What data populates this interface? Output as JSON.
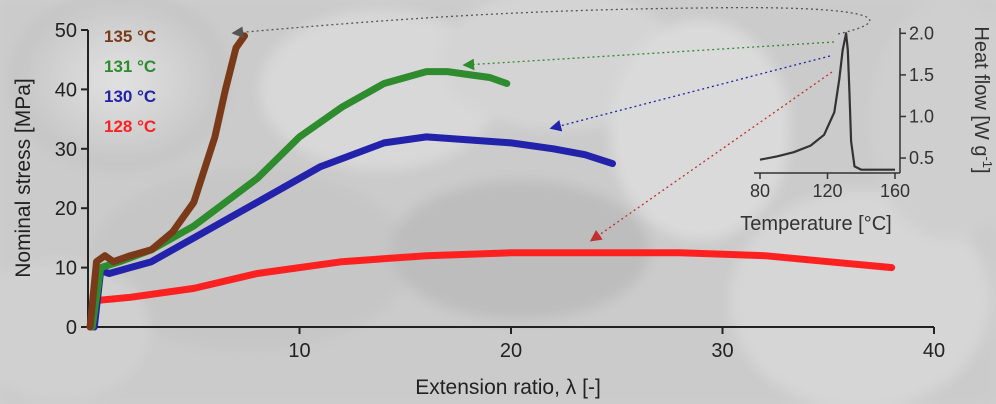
{
  "chart_data": [
    {
      "type": "line",
      "xlabel_main": "Extension ratio, ",
      "xlabel_sym": "λ",
      "xlabel_tail": " [-]",
      "ylabel": "Nominal stress [MPa]",
      "xlim": [
        0,
        40
      ],
      "ylim": [
        0,
        50
      ],
      "xticks": [
        "10",
        "20",
        "30",
        "40"
      ],
      "yticks": [
        "0",
        "10",
        "20",
        "30",
        "40",
        "50"
      ],
      "legend_placement": "top-left",
      "series": [
        {
          "name": "135",
          "unit": "°C",
          "color": "#7a3a1a",
          "x": [
            0.1,
            0.4,
            0.8,
            1.2,
            2,
            3,
            4,
            5,
            6,
            6.5,
            7,
            7.4
          ],
          "y": [
            0,
            11,
            12,
            11,
            12,
            13,
            16,
            21,
            32,
            40,
            47,
            49
          ]
        },
        {
          "name": "131",
          "unit": "°C",
          "color": "#2e8b2e",
          "x": [
            0.2,
            0.6,
            1.5,
            3,
            5,
            8,
            10,
            12,
            14,
            16,
            17,
            18,
            19,
            19.8
          ],
          "y": [
            0,
            10,
            11,
            13,
            17,
            25,
            32,
            37,
            41,
            43,
            43,
            42.5,
            42,
            41
          ]
        },
        {
          "name": "130",
          "unit": "°C",
          "color": "#2222aa",
          "x": [
            0.3,
            0.6,
            1,
            3,
            5,
            8,
            11,
            14,
            16,
            18,
            20,
            22,
            23.5,
            24.8
          ],
          "y": [
            0,
            9.5,
            9,
            11,
            15,
            21,
            27,
            31,
            32,
            31.5,
            31,
            30,
            29,
            27.5
          ]
        },
        {
          "name": "128",
          "unit": "°C",
          "color": "#ff2020",
          "x": [
            0.1,
            0.3,
            0.5,
            2,
            5,
            8,
            12,
            16,
            20,
            24,
            28,
            32,
            35,
            38
          ],
          "y": [
            0,
            5,
            4.5,
            5,
            6.5,
            9,
            11,
            12,
            12.5,
            12.5,
            12.5,
            12,
            11,
            10
          ]
        }
      ]
    },
    {
      "type": "line",
      "xlabel_main": "Temperature ",
      "xlabel_unit": "[°C]",
      "ylabel": "Heat flow [W g",
      "ylabel_exp": "-1",
      "ylabel_tail": "]",
      "xlim": [
        80,
        160
      ],
      "ylim": [
        0.2,
        2.1
      ],
      "xticks": [
        "80",
        "120",
        "160"
      ],
      "yticks": [
        "0.5",
        "1.0",
        "1.5",
        "2.0"
      ],
      "series": [
        {
          "color": "#333333",
          "x": [
            80,
            90,
            100,
            110,
            118,
            124,
            127,
            129,
            131,
            132,
            133,
            134,
            136,
            140,
            150,
            160
          ],
          "y": [
            0.48,
            0.52,
            0.57,
            0.65,
            0.78,
            1.05,
            1.45,
            1.8,
            2.0,
            1.8,
            1.3,
            0.7,
            0.4,
            0.36,
            0.36,
            0.36
          ]
        }
      ]
    }
  ],
  "colors": {
    "arrow_dark": "#666666"
  }
}
